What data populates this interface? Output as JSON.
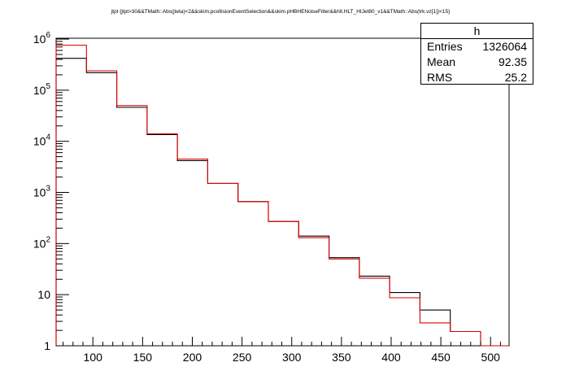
{
  "chart_data": {
    "type": "histogram",
    "title": "jtpt {jtpt>30&&TMath::Abs(jteta)<2&&skim.pcollisionEventSelection&&skim.pHBHENoiseFilter&&hlt.HLT_HIJet80_v1&&TMath::Abs(trk.vz[1])<15}",
    "xlabel": "",
    "ylabel": "",
    "xlim": [
      63,
      518
    ],
    "ylim": [
      1,
      1000000
    ],
    "yscale": "log",
    "grid": false,
    "bin_edges": [
      63,
      93.5,
      124,
      154.5,
      185,
      215.5,
      246,
      276.5,
      307,
      337.5,
      368,
      398.5,
      429,
      459.5,
      490,
      518
    ],
    "x_ticks": [
      100,
      150,
      200,
      250,
      300,
      350,
      400,
      450,
      500
    ],
    "x_tick_labels": [
      "100",
      "150",
      "200",
      "250",
      "300",
      "350",
      "400",
      "450",
      "500"
    ],
    "y_ticks": [
      1,
      10,
      100,
      1000,
      10000,
      100000,
      1000000
    ],
    "y_tick_labels": [
      {
        "base": "1",
        "exp": ""
      },
      {
        "base": "10",
        "exp": ""
      },
      {
        "base": "10",
        "exp": "2"
      },
      {
        "base": "10",
        "exp": "3"
      },
      {
        "base": "10",
        "exp": "4"
      },
      {
        "base": "10",
        "exp": "5"
      },
      {
        "base": "10",
        "exp": "6"
      }
    ],
    "series": [
      {
        "color": "#000000",
        "values": [
          420000,
          220000,
          46000,
          13500,
          4200,
          1500,
          660,
          270,
          140,
          53,
          23,
          11,
          5.0,
          1.9,
          1.0
        ]
      },
      {
        "color": "#dd0000",
        "values": [
          760000,
          240000,
          50000,
          14000,
          4500,
          1500,
          660,
          270,
          130,
          50,
          21,
          8.7,
          2.8,
          1.9,
          1.0
        ]
      }
    ]
  },
  "stats": {
    "name": "h",
    "rows": [
      {
        "label": "Entries",
        "value": "1326064"
      },
      {
        "label": "Mean",
        "value": "92.35"
      },
      {
        "label": "RMS",
        "value": "25.2"
      }
    ]
  }
}
